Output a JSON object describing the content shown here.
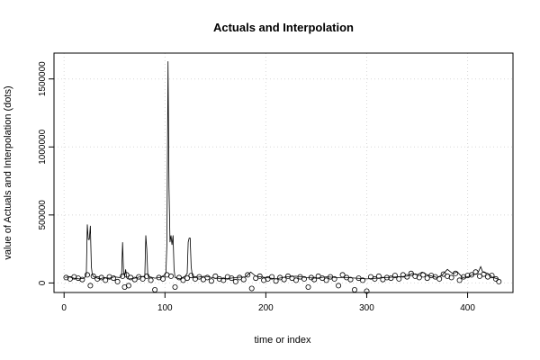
{
  "chart_data": {
    "type": "scatter",
    "title": "Actuals and Interpolation",
    "xlabel": "time or index",
    "ylabel": "value of Actuals and Interpolation (dots)",
    "xlim": [
      -10,
      445
    ],
    "ylim": [
      -70000,
      1690000
    ],
    "x_ticks": [
      0,
      100,
      200,
      300,
      400
    ],
    "x_tick_labels": [
      "0",
      "100",
      "200",
      "300",
      "400"
    ],
    "y_ticks": [
      0,
      500000,
      1000000,
      1500000
    ],
    "y_tick_labels": [
      "0",
      "500000",
      "1000000",
      "1500000"
    ],
    "grid": true,
    "series": [
      {
        "kind": "line",
        "x": [
          1,
          5,
          10,
          15,
          20,
          22,
          23,
          24,
          25,
          26,
          27,
          28,
          29,
          30,
          35,
          40,
          45,
          50,
          55,
          57,
          58,
          59,
          60,
          61,
          62,
          63,
          65,
          70,
          75,
          80,
          81,
          82,
          83,
          84,
          85,
          90,
          95,
          100,
          101,
          102,
          103,
          104,
          105,
          106,
          107,
          108,
          109,
          110,
          115,
          120,
          122,
          123,
          124,
          125,
          126,
          127,
          128,
          130,
          140,
          150,
          160,
          170,
          180,
          185,
          190,
          200,
          210,
          220,
          230,
          240,
          250,
          260,
          270,
          280,
          290,
          300,
          310,
          320,
          330,
          340,
          345,
          350,
          355,
          360,
          370,
          375,
          380,
          385,
          390,
          395,
          400,
          405,
          410,
          413,
          415,
          420,
          425,
          430
        ],
        "y": [
          40000,
          45000,
          35000,
          30000,
          35000,
          60000,
          430000,
          320000,
          320000,
          420000,
          120000,
          60000,
          50000,
          45000,
          30000,
          40000,
          35000,
          45000,
          40000,
          50000,
          300000,
          80000,
          50000,
          100000,
          40000,
          30000,
          30000,
          35000,
          45000,
          50000,
          350000,
          250000,
          60000,
          40000,
          45000,
          35000,
          40000,
          60000,
          80000,
          300000,
          1630000,
          700000,
          300000,
          350000,
          280000,
          350000,
          100000,
          40000,
          30000,
          50000,
          70000,
          300000,
          330000,
          330000,
          120000,
          60000,
          40000,
          40000,
          50000,
          35000,
          30000,
          40000,
          45000,
          80000,
          50000,
          40000,
          30000,
          45000,
          50000,
          40000,
          35000,
          45000,
          40000,
          40000,
          35000,
          30000,
          35000,
          40000,
          45000,
          50000,
          70000,
          60000,
          80000,
          60000,
          40000,
          60000,
          100000,
          70000,
          80000,
          40000,
          45000,
          60000,
          70000,
          120000,
          80000,
          70000,
          40000,
          30000
        ]
      },
      {
        "kind": "points",
        "x": [
          2,
          6,
          10,
          14,
          18,
          23,
          26,
          29,
          33,
          37,
          41,
          45,
          49,
          53,
          58,
          60,
          62,
          64,
          66,
          70,
          74,
          78,
          82,
          86,
          90,
          94,
          98,
          102,
          106,
          110,
          114,
          118,
          122,
          126,
          130,
          134,
          138,
          142,
          146,
          150,
          154,
          158,
          162,
          166,
          170,
          174,
          178,
          182,
          186,
          190,
          194,
          198,
          202,
          206,
          210,
          214,
          218,
          222,
          226,
          230,
          234,
          238,
          242,
          245,
          248,
          252,
          256,
          260,
          264,
          268,
          272,
          276,
          280,
          284,
          288,
          292,
          296,
          300,
          304,
          308,
          312,
          316,
          320,
          324,
          328,
          332,
          336,
          340,
          344,
          348,
          352,
          356,
          360,
          364,
          368,
          372,
          376,
          380,
          384,
          388,
          392,
          396,
          400,
          404,
          408,
          412,
          416,
          420,
          424,
          428,
          431
        ],
        "y": [
          40000,
          30000,
          45000,
          35000,
          25000,
          60000,
          -20000,
          50000,
          30000,
          40000,
          20000,
          45000,
          35000,
          10000,
          50000,
          -30000,
          60000,
          -20000,
          40000,
          25000,
          45000,
          30000,
          50000,
          20000,
          -50000,
          40000,
          30000,
          60000,
          50000,
          -30000,
          40000,
          20000,
          35000,
          55000,
          30000,
          45000,
          25000,
          40000,
          15000,
          50000,
          30000,
          20000,
          45000,
          35000,
          10000,
          40000,
          25000,
          60000,
          -40000,
          35000,
          50000,
          20000,
          30000,
          45000,
          15000,
          40000,
          25000,
          50000,
          35000,
          20000,
          45000,
          30000,
          -30000,
          40000,
          25000,
          50000,
          35000,
          20000,
          45000,
          30000,
          -20000,
          60000,
          40000,
          25000,
          -50000,
          35000,
          20000,
          -60000,
          45000,
          30000,
          50000,
          25000,
          40000,
          35000,
          55000,
          30000,
          60000,
          45000,
          70000,
          50000,
          40000,
          60000,
          35000,
          55000,
          45000,
          30000,
          65000,
          50000,
          40000,
          70000,
          20000,
          45000,
          55000,
          60000,
          80000,
          50000,
          65000,
          45000,
          55000,
          30000,
          10000
        ]
      }
    ]
  }
}
